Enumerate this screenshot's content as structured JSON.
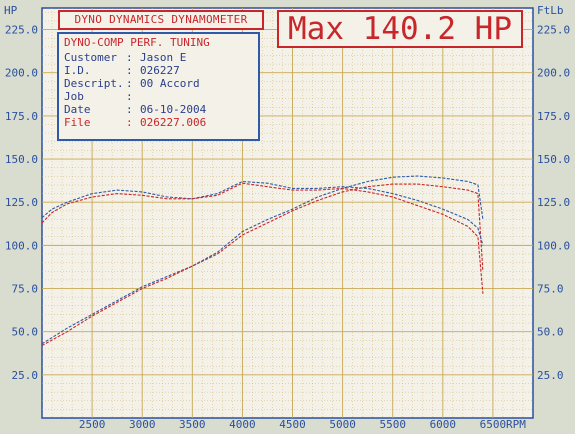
{
  "header": {
    "title": "DYNO DYNAMICS DYNAMOMETER",
    "max_label": "Max 140.2 HP"
  },
  "info": {
    "company": "DYNO-COMP PERF. TUNING",
    "rows": [
      {
        "key": "Customer",
        "value": "Jason E"
      },
      {
        "key": "I.D.",
        "value": "026227"
      },
      {
        "key": "Descript.",
        "value": "00 Accord"
      },
      {
        "key": "Job",
        "value": ""
      },
      {
        "key": "Date",
        "value": "06-10-2004"
      },
      {
        "key": "File",
        "value": "026227.006"
      }
    ]
  },
  "colors": {
    "grid": "#c8a955",
    "axis": "#2a4fa0",
    "red": "#c8262b",
    "blue": "#2f5aa8",
    "bg": "#f4f1e8"
  },
  "chart_data": {
    "type": "line",
    "xlabel": "RPM",
    "ylabel_left": "HP",
    "ylabel_right": "FtLb",
    "xlim": [
      2000,
      6900
    ],
    "ylim": [
      0,
      237.5
    ],
    "xticks": [
      2500,
      3000,
      3500,
      4000,
      4500,
      5000,
      5500,
      6000,
      6500
    ],
    "yticks": [
      25,
      50,
      75,
      100,
      125,
      150,
      175,
      200,
      225
    ],
    "grid": true,
    "series": [
      {
        "color": "#2f5aa8",
        "x": [
          2000,
          2250,
          2500,
          2750,
          3000,
          3250,
          3500,
          3750,
          4000,
          4250,
          4500,
          4750,
          5000,
          5250,
          5500,
          5750,
          6000,
          6250,
          6350,
          6400
        ],
        "values": [
          43,
          52,
          60,
          68,
          76,
          82,
          88,
          96,
          108,
          115,
          121,
          128,
          133,
          137,
          139.5,
          140.2,
          139,
          137,
          135,
          115
        ]
      },
      {
        "color": "#c8262b",
        "x": [
          2000,
          2250,
          2500,
          2750,
          3000,
          3250,
          3500,
          3750,
          4000,
          4250,
          4500,
          4750,
          5000,
          5250,
          5500,
          5750,
          6000,
          6250,
          6350,
          6400
        ],
        "values": [
          42,
          50,
          59,
          67,
          75,
          81,
          88,
          95,
          106,
          113,
          120,
          126,
          131,
          134,
          135.5,
          135.5,
          134,
          132,
          130,
          85
        ]
      },
      {
        "color": "#2f5aa8",
        "x": [
          2000,
          2100,
          2250,
          2500,
          2750,
          3000,
          3250,
          3500,
          3750,
          4000,
          4250,
          4500,
          4750,
          5000,
          5250,
          5500,
          5750,
          6000,
          6250,
          6350,
          6400
        ],
        "values": [
          116,
          121,
          125,
          130,
          132,
          131,
          128,
          127,
          130,
          137,
          136,
          133,
          133,
          134,
          133,
          130,
          126,
          121,
          115,
          110,
          100
        ]
      },
      {
        "color": "#c8262b",
        "x": [
          2000,
          2100,
          2250,
          2500,
          2750,
          3000,
          3250,
          3500,
          3750,
          4000,
          4250,
          4500,
          4750,
          5000,
          5250,
          5500,
          5750,
          6000,
          6250,
          6350,
          6400
        ],
        "values": [
          113,
          119,
          124,
          128,
          130,
          129,
          127,
          127,
          129,
          136,
          134,
          132,
          132,
          133,
          131,
          128,
          123,
          118,
          111,
          105,
          72
        ]
      }
    ]
  }
}
